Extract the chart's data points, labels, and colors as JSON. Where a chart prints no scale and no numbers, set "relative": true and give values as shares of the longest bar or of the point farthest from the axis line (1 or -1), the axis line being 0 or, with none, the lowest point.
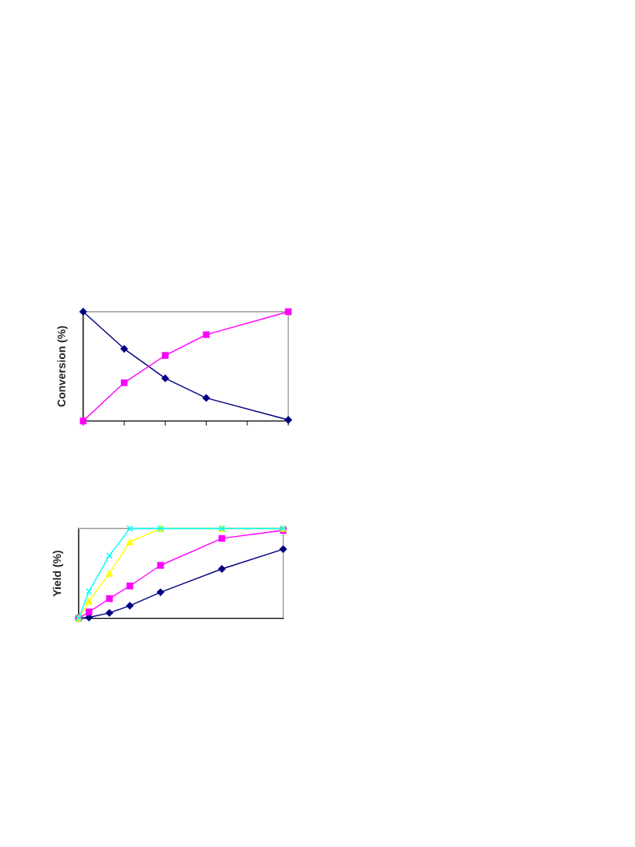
{
  "chart_data": [
    {
      "type": "line",
      "ylabel": "Conversion (%)",
      "relative": true,
      "categories": [
        null,
        null,
        null,
        null,
        null,
        null
      ],
      "series": [
        {
          "color": "#000080",
          "marker": "diamond",
          "values": [
            1.0,
            0.66,
            0.39,
            0.21,
            null,
            0.01
          ]
        },
        {
          "color": "#ff00ff",
          "marker": "square",
          "values": [
            0.0,
            0.35,
            0.6,
            0.79,
            null,
            1.0
          ]
        }
      ]
    },
    {
      "type": "line",
      "ylabel": "Yield (%)",
      "relative": true,
      "categories": [
        null,
        null,
        null,
        null,
        null,
        null,
        null,
        null,
        null,
        null,
        null,
        null,
        null,
        null,
        null,
        null,
        null,
        null,
        null,
        null,
        null
      ],
      "series": [
        {
          "color": "#000080",
          "marker": "diamond",
          "values": [
            0.0,
            0.01,
            null,
            0.06,
            null,
            0.14,
            null,
            null,
            0.29,
            null,
            null,
            null,
            null,
            null,
            0.55,
            null,
            null,
            null,
            null,
            null,
            0.77
          ]
        },
        {
          "color": "#ff00ff",
          "marker": "square",
          "values": [
            0.0,
            0.07,
            null,
            0.22,
            null,
            0.36,
            null,
            null,
            0.59,
            null,
            null,
            null,
            null,
            null,
            0.89,
            null,
            null,
            null,
            null,
            null,
            0.98
          ]
        },
        {
          "color": "#ffff00",
          "marker": "triangle",
          "values": [
            0.0,
            0.19,
            null,
            0.5,
            null,
            0.85,
            null,
            null,
            1.0,
            null,
            null,
            null,
            null,
            null,
            1.0,
            null,
            null,
            null,
            null,
            null,
            1.0
          ]
        },
        {
          "color": "#00ffff",
          "marker": "cross",
          "values": [
            0.0,
            0.3,
            null,
            0.7,
            null,
            1.0,
            null,
            null,
            1.0,
            null,
            null,
            null,
            null,
            null,
            1.0,
            null,
            null,
            null,
            null,
            null,
            1.0
          ]
        }
      ]
    }
  ]
}
